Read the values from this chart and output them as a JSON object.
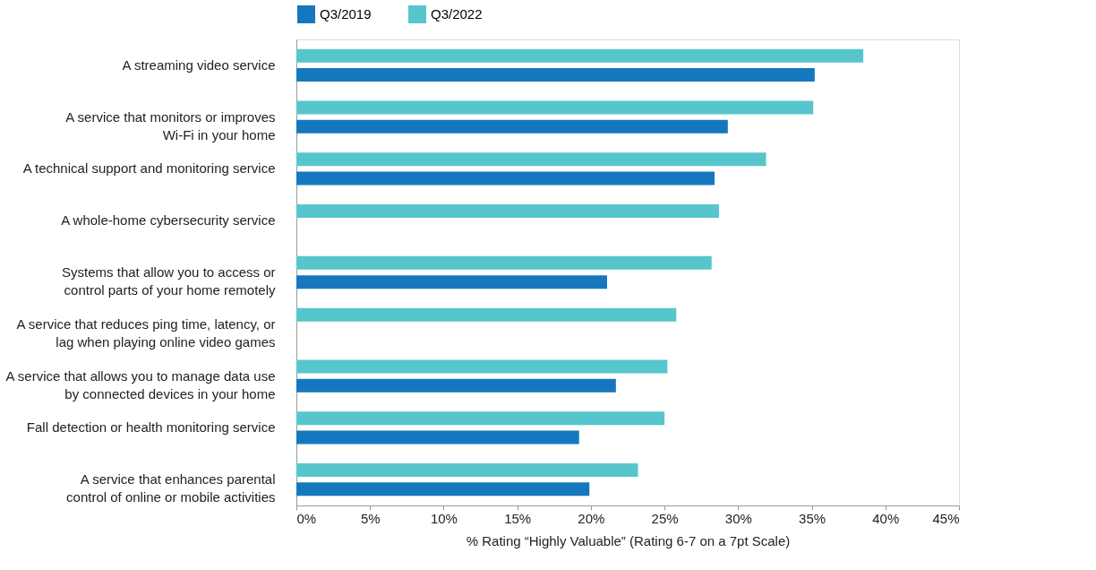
{
  "chart_data": {
    "type": "bar",
    "orientation": "horizontal",
    "categories": [
      "A streaming video service",
      "A service that monitors or improves\nWi-Fi in your home",
      "A technical support and monitoring service",
      "A whole-home cybersecurity service",
      "Systems that allow you to access or\ncontrol parts of your home remotely",
      "A service that reduces ping time, latency, or\nlag when playing online video games",
      "A service that allows you to manage data use\nby connected devices in your home",
      "Fall detection or health monitoring service",
      "A service that enhances parental\ncontrol of online or mobile activities"
    ],
    "series": [
      {
        "name": "Q3/2019",
        "color": "#1578bf",
        "values": [
          35.2,
          29.3,
          28.4,
          null,
          21.1,
          null,
          21.7,
          19.2,
          19.9
        ]
      },
      {
        "name": "Q3/2022",
        "color": "#56c6cc",
        "values": [
          38.5,
          35.1,
          31.9,
          28.7,
          28.2,
          25.8,
          25.2,
          25.0,
          23.2
        ]
      }
    ],
    "xlabel": "% Rating “Highly Valuable” (Rating 6-7 on a 7pt Scale)",
    "xlim": [
      0,
      45
    ],
    "xticks": [
      {
        "value": 0,
        "label": "0%"
      },
      {
        "value": 5,
        "label": "5%"
      },
      {
        "value": 10,
        "label": "10%"
      },
      {
        "value": 15,
        "label": "15%"
      },
      {
        "value": 20,
        "label": "20%"
      },
      {
        "value": 25,
        "label": "25%"
      },
      {
        "value": 30,
        "label": "30%"
      },
      {
        "value": 35,
        "label": "35%"
      },
      {
        "value": 40,
        "label": "40%"
      },
      {
        "value": 45,
        "label": "45%"
      }
    ],
    "grid": false,
    "legend": "top"
  }
}
